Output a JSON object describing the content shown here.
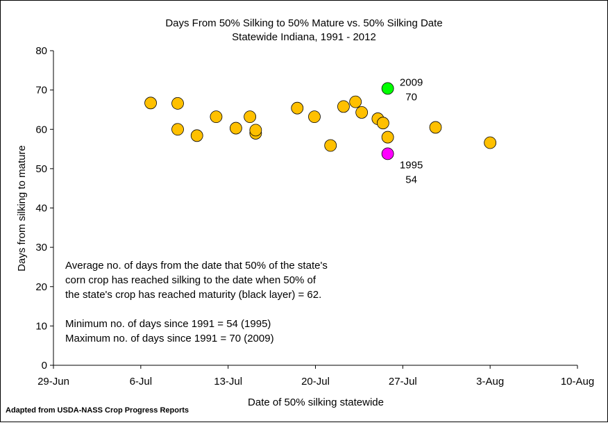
{
  "chart_data": {
    "type": "scatter",
    "title": "Days From 50% Silking to 50% Mature vs. 50% Silking Date",
    "subtitle": "Statewide Indiana, 1991 - 2012",
    "xlabel": "Date of 50% silking statewide",
    "ylabel": "Days from silking to mature",
    "xlim": [
      "2000-06-29",
      "2000-08-10"
    ],
    "ylim": [
      0,
      80
    ],
    "x_ticks": [
      "29-Jun",
      "6-Jul",
      "13-Jul",
      "20-Jul",
      "27-Jul",
      "3-Aug",
      "10-Aug"
    ],
    "y_ticks": [
      0,
      10,
      20,
      30,
      40,
      50,
      60,
      70,
      80
    ],
    "grid": false,
    "point_color_default": "#FFC000",
    "points": [
      {
        "x": "2000-07-06 19:00",
        "y": 66.7
      },
      {
        "x": "2000-07-08 23:00",
        "y": 66.6
      },
      {
        "x": "2000-07-08 23:00",
        "y": 60.0
      },
      {
        "x": "2000-07-10 12:00",
        "y": 58.4
      },
      {
        "x": "2000-07-12 01:00",
        "y": 63.2
      },
      {
        "x": "2000-07-13 15:00",
        "y": 60.3
      },
      {
        "x": "2000-07-14 18:00",
        "y": 63.2
      },
      {
        "x": "2000-07-15 05:00",
        "y": 59.0
      },
      {
        "x": "2000-07-15 05:00",
        "y": 59.8
      },
      {
        "x": "2000-07-18 13:00",
        "y": 65.4
      },
      {
        "x": "2000-07-19 22:00",
        "y": 63.2
      },
      {
        "x": "2000-07-21 05:00",
        "y": 55.9
      },
      {
        "x": "2000-07-22 06:00",
        "y": 65.8
      },
      {
        "x": "2000-07-23 05:00",
        "y": 67.0
      },
      {
        "x": "2000-07-23 17:00",
        "y": 64.3
      },
      {
        "x": "2000-07-25 00:00",
        "y": 62.7
      },
      {
        "x": "2000-07-25 10:00",
        "y": 61.6
      },
      {
        "x": "2000-07-25 19:00",
        "y": 58.0
      },
      {
        "x": "2000-07-25 19:00",
        "y": 70.4,
        "color": "#00FF00",
        "label": [
          "2009",
          "70"
        ]
      },
      {
        "x": "2000-07-25 19:00",
        "y": 53.8,
        "color": "#FF00FF",
        "label": [
          "1995",
          "54"
        ]
      },
      {
        "x": "2000-07-29 15:00",
        "y": 60.5
      },
      {
        "x": "2000-08-03 00:00",
        "y": 56.6
      }
    ],
    "annotation": [
      "Average no. of days from the date that 50% of the state's",
      "corn crop has reached silking to the date when 50% of",
      "the state's crop has reached maturity (black layer) = 62.",
      "",
      "Minimum no. of days since 1991 = 54 (1995)",
      "Maximum no. of days since 1991 = 70 (2009)"
    ]
  },
  "source_note": "Adapted from USDA-NASS Crop Progress Reports"
}
